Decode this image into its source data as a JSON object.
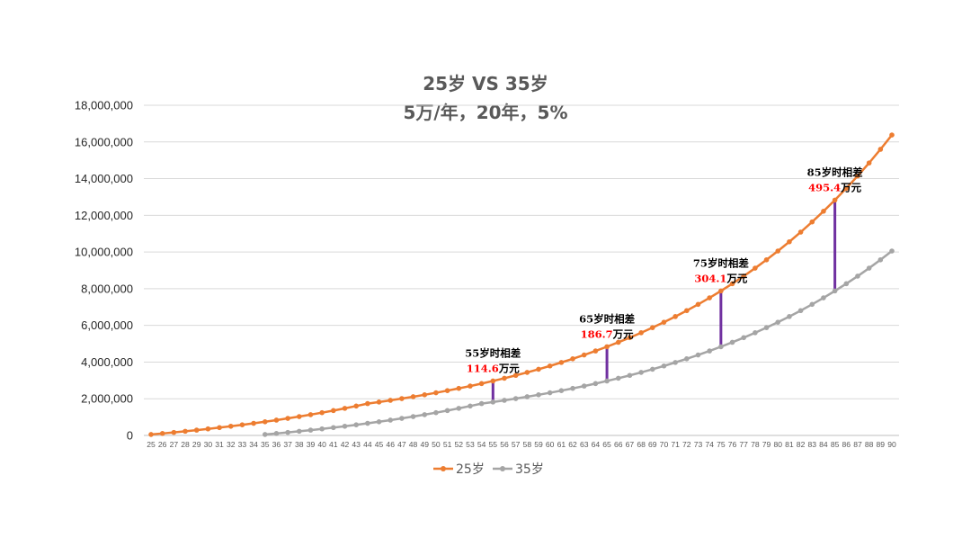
{
  "chart_data": {
    "type": "line",
    "title_line1": "25岁 VS 35岁",
    "title_line2": "5万/年，20年，5%",
    "xlabel": "",
    "ylabel": "",
    "ylim": [
      0,
      18000000
    ],
    "yticks": [
      0,
      2000000,
      4000000,
      6000000,
      8000000,
      10000000,
      12000000,
      14000000,
      16000000,
      18000000
    ],
    "ytick_labels": [
      "0",
      "2,000,000",
      "4,000,000",
      "6,000,000",
      "8,000,000",
      "10,000,000",
      "12,000,000",
      "14,000,000",
      "16,000,000",
      "18,000,000"
    ],
    "grid": true,
    "legend_position": "bottom",
    "x_start": 25,
    "x_end": 90,
    "series": [
      {
        "name": "25岁",
        "color": "#ed7d31",
        "start_age": 25,
        "contribution_per_year": 50000,
        "contribution_years": 20,
        "rate": 0.05
      },
      {
        "name": "35岁",
        "color": "#a5a5a5",
        "start_age": 35,
        "contribution_per_year": 50000,
        "contribution_years": 20,
        "rate": 0.05
      }
    ],
    "annotations": [
      {
        "age": 55,
        "label": "55岁时相差",
        "value": "114.6",
        "unit": "万元"
      },
      {
        "age": 65,
        "label": "65岁时相差",
        "value": "186.7",
        "unit": "万元"
      },
      {
        "age": 75,
        "label": "75岁时相差",
        "value": "304.1",
        "unit": "万元"
      },
      {
        "age": 85,
        "label": "85岁时相差",
        "value": "495.4",
        "unit": "万元"
      }
    ],
    "annotation_line_color": "#7030a0"
  }
}
